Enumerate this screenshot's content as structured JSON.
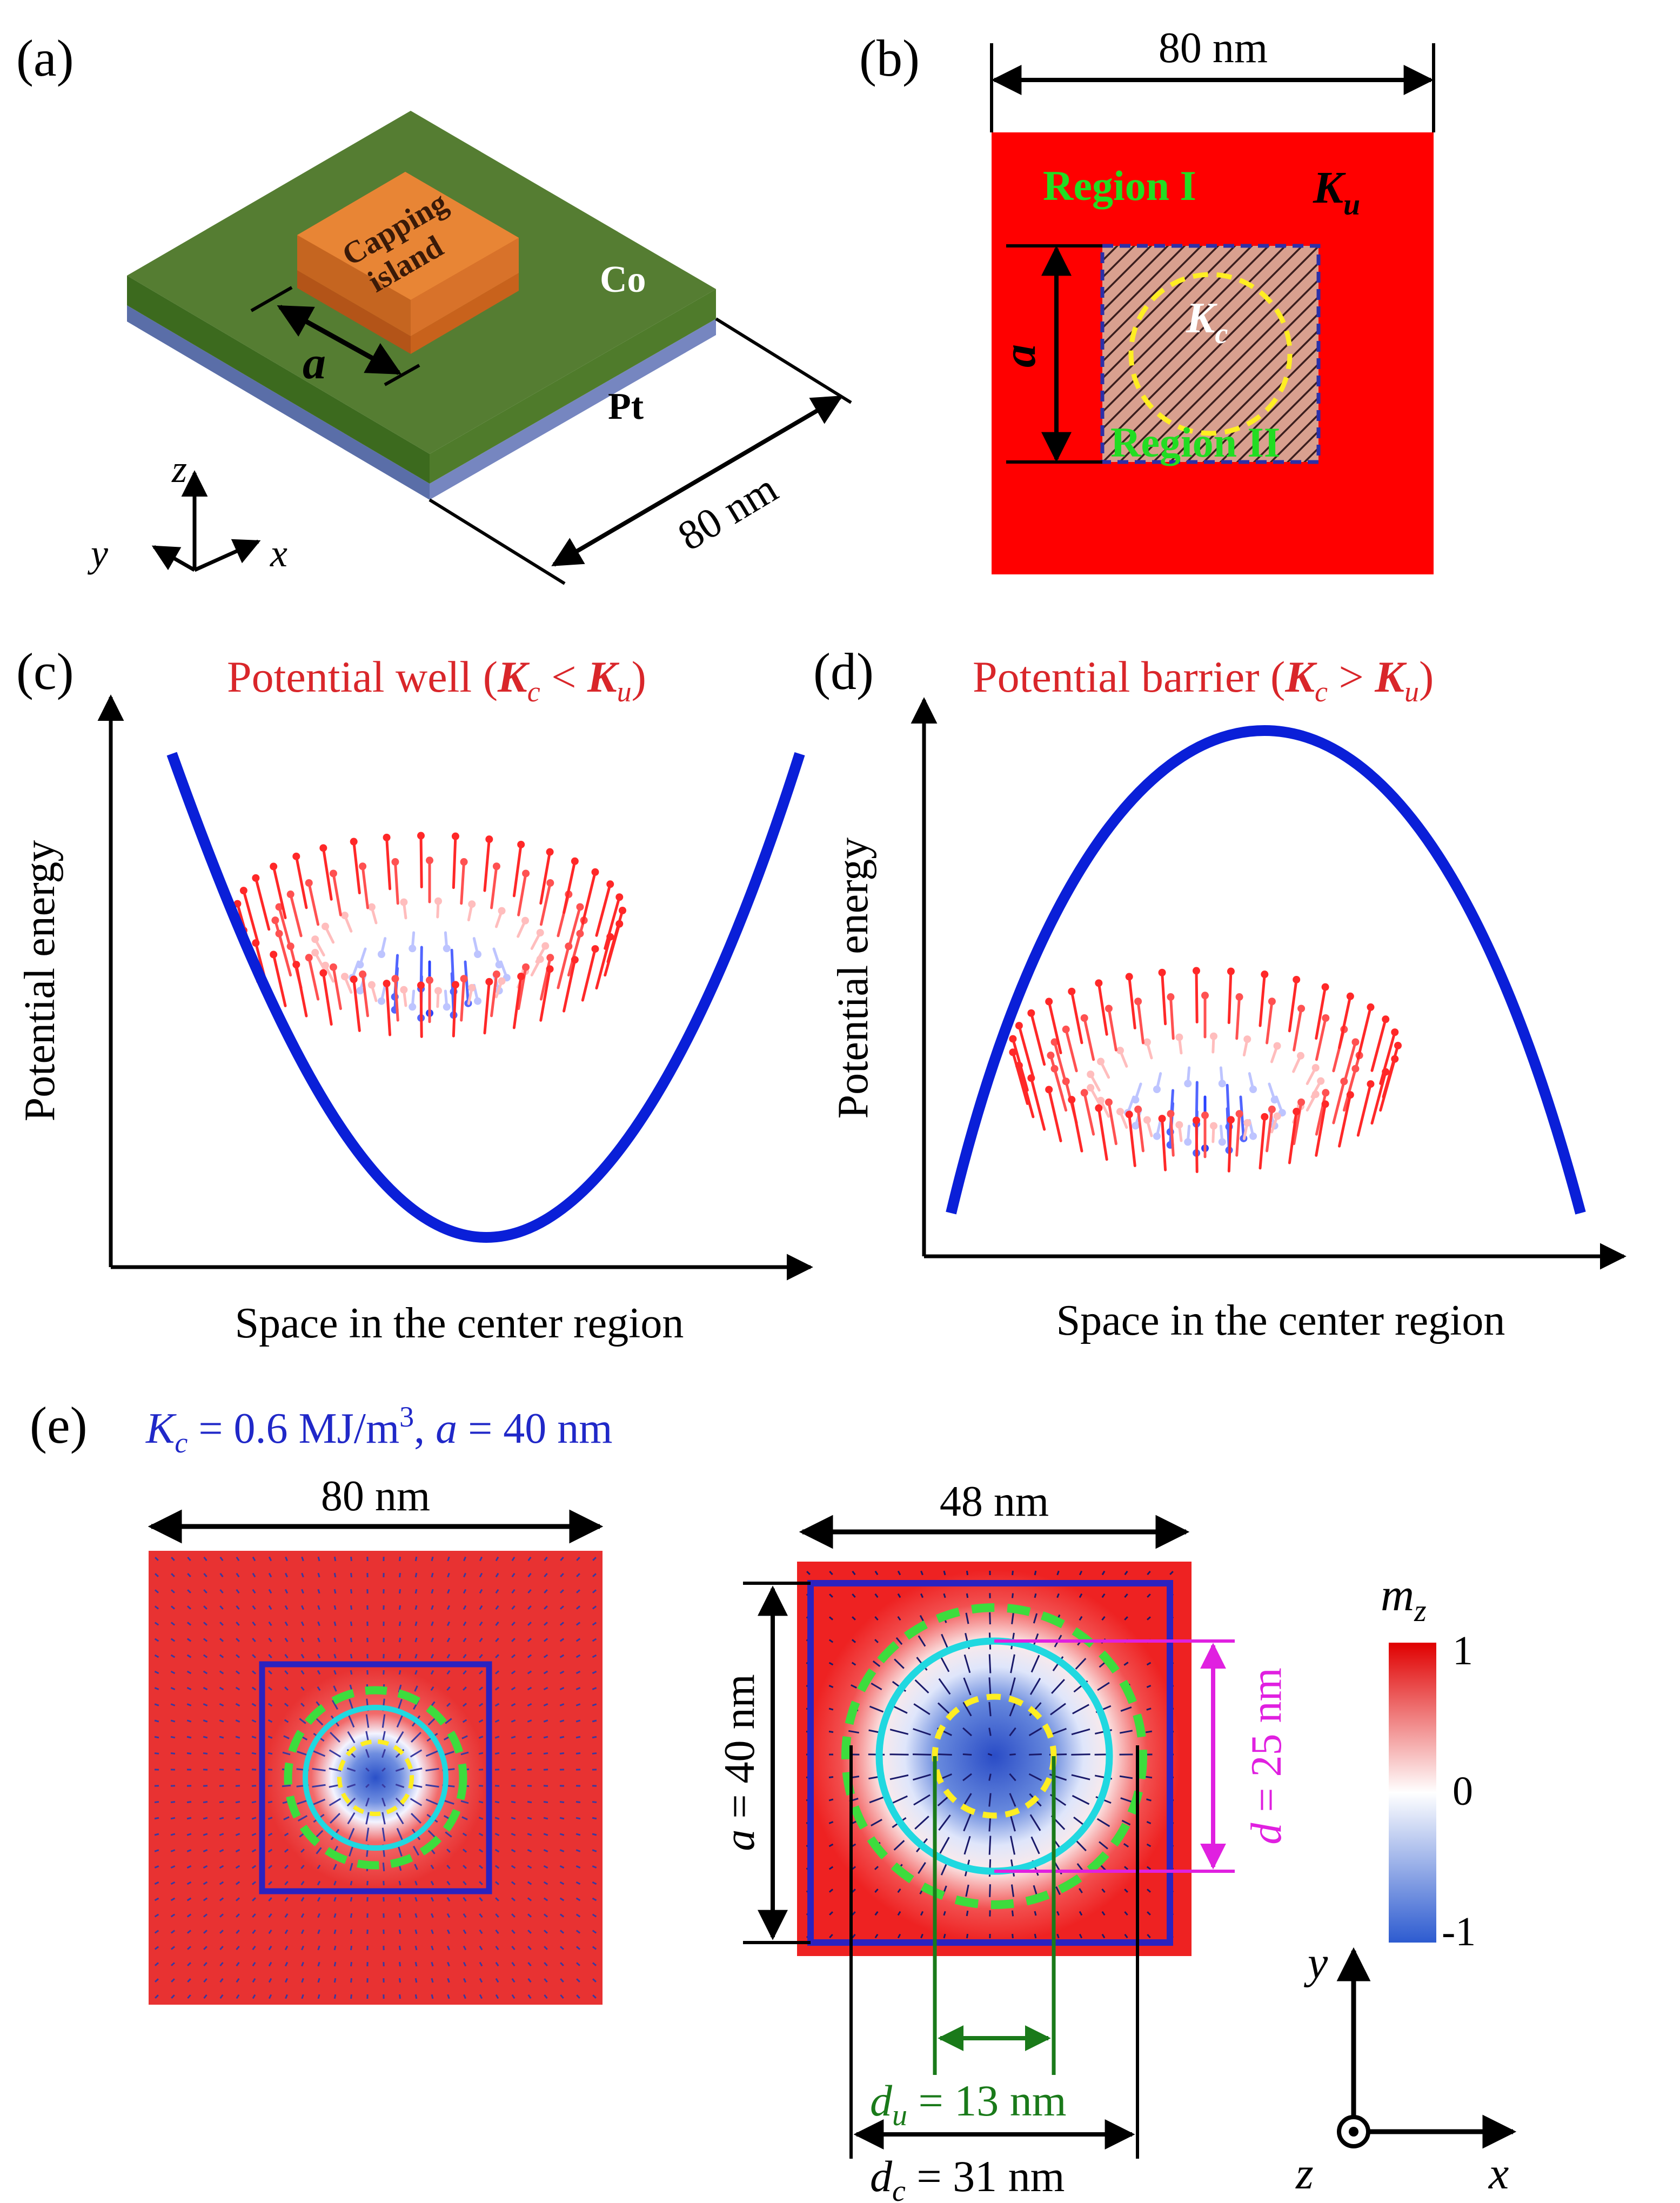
{
  "panels": {
    "a": {
      "label": "(a)",
      "island_line1": "Capping",
      "island_line2": "island",
      "co_label": "Co",
      "pt_label": "Pt",
      "a_label": "a",
      "width_label": "80 nm",
      "axis_z": "z",
      "axis_y": "y",
      "axis_x": "x"
    },
    "b": {
      "label": "(b)",
      "width_label": "80 nm",
      "region1": "Region I",
      "region2": "Region II",
      "ku_main": "K",
      "ku_sub": "u",
      "kc_main": "K",
      "kc_sub": "c",
      "a_label": "a"
    },
    "c": {
      "label": "(c)",
      "title_prefix": "Potential well (",
      "title_k1": "K",
      "title_sub1": "c",
      "title_op": " < ",
      "title_k2": "K",
      "title_sub2": "u",
      "title_suffix": ")",
      "ylabel": "Potential energy",
      "xlabel": "Space in the center region"
    },
    "d": {
      "label": "(d)",
      "title_prefix": "Potential barrier (",
      "title_k1": "K",
      "title_sub1": "c",
      "title_op": " > ",
      "title_k2": "K",
      "title_sub2": "u",
      "title_suffix": ")",
      "ylabel": "Potential energy",
      "xlabel": "Space in the center region"
    },
    "e": {
      "label": "(e)",
      "params_k": "K",
      "params_ksub": "c",
      "params_mid": " = 0.6 MJ/m",
      "params_sup": "3",
      "params_comma": ", ",
      "params_a": "a",
      "params_aval": " = 40 nm",
      "width_full": "80 nm",
      "width_zoom": "48 nm",
      "a_label_var": "a",
      "a_label_val": " = 40 nm",
      "d_label_var": "d",
      "d_label_val": " = 25 nm",
      "du_var": "d",
      "du_sub": "u",
      "du_val": " = 13 nm",
      "dc_var": "d",
      "dc_sub": "c",
      "dc_val": " = 31 nm",
      "colorbar_title_main": "m",
      "colorbar_title_sub": "z",
      "colorbar_ticks": [
        "1",
        "0",
        "-1"
      ],
      "axis_y": "y",
      "axis_x": "x",
      "axis_z": "z"
    }
  },
  "colors": {
    "red": "#ff0000",
    "green_text": "#22dd22",
    "blue_curve": "#0a1fd8",
    "title_red": "#d9262a",
    "magenta": "#e020e0",
    "dark_green": "#1a7a1a",
    "cyan": "#20d8e0",
    "dashed_green": "#3ddc3d",
    "yellow": "#ffee22",
    "params_blue": "#2028c8"
  }
}
